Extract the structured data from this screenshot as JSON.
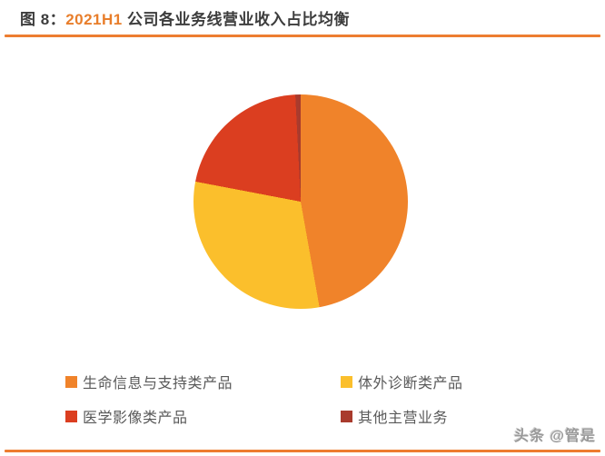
{
  "header": {
    "figure_label": "图 8：",
    "highlight": "2021H1",
    "title_rest": " 公司各业务线营业收入占比均衡"
  },
  "chart_data": {
    "type": "pie",
    "title": "2021H1 公司各业务线营业收入占比均衡",
    "unit": "percent_share_of_revenue",
    "start_angle_deg": 0,
    "direction": "clockwise",
    "legend_position": "bottom",
    "slices": [
      {
        "label": "生命信息与支持类产品",
        "value": 47.2,
        "color": "#F0832A"
      },
      {
        "label": "体外诊断类产品",
        "value": 30.8,
        "color": "#FBBF2C"
      },
      {
        "label": "医学影像类产品",
        "value": 21.2,
        "color": "#DB3E20"
      },
      {
        "label": "其他主营业务",
        "value": 0.8,
        "color": "#A93B2D"
      }
    ]
  },
  "watermark": "头条 @管是",
  "accent_color": "#ED7D31"
}
